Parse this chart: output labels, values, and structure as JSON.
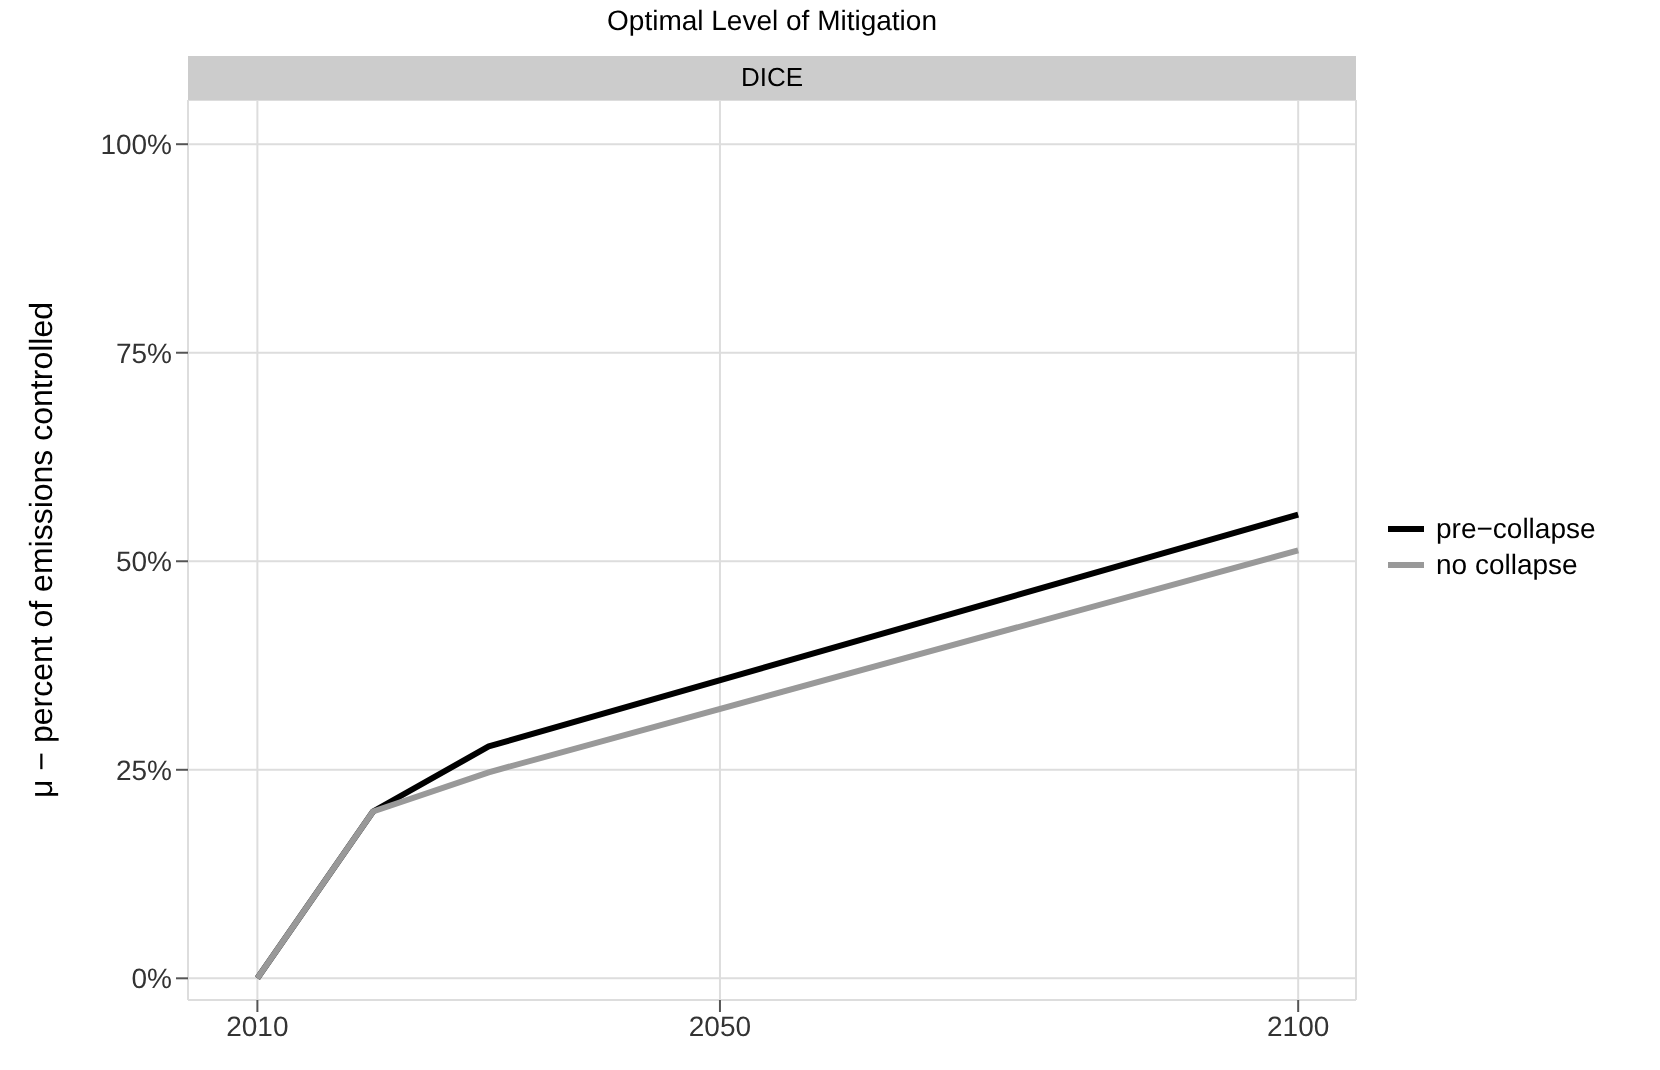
{
  "chart_data": {
    "type": "line",
    "title": "Optimal Level of Mitigation",
    "subtitle": "DICE",
    "ylabel": "μ − percent of emissions controlled",
    "x": [
      2010,
      2020,
      2030,
      2100
    ],
    "series": [
      {
        "name": "pre−collapse",
        "color": "#000000",
        "values": [
          0,
          20,
          27.8,
          55.6
        ]
      },
      {
        "name": "no collapse",
        "color": "#999999",
        "values": [
          0,
          20,
          24.7,
          51.3
        ]
      }
    ],
    "xlim": [
      2004,
      2105
    ],
    "xticks": [
      2010,
      2050,
      2100
    ],
    "ylim": [
      -2.6,
      105.3
    ],
    "yticks": [
      {
        "value": 0,
        "label": "0%"
      },
      {
        "value": 25,
        "label": "25%"
      },
      {
        "value": 50,
        "label": "50%"
      },
      {
        "value": 75,
        "label": "75%"
      },
      {
        "value": 100,
        "label": "100%"
      }
    ],
    "grid": true,
    "legend": "right",
    "marker": "none",
    "line_style": "solid"
  }
}
